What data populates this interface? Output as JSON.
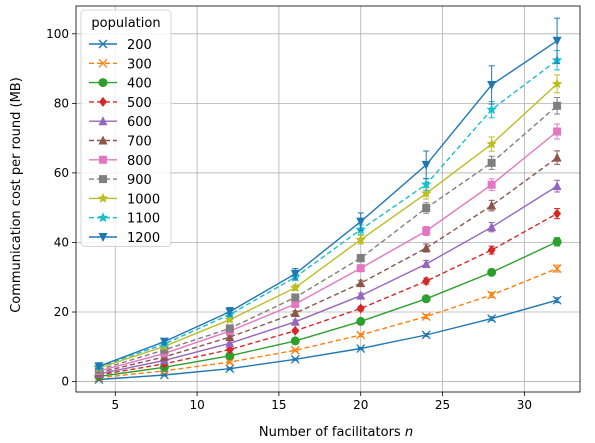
{
  "chart_data": {
    "type": "line",
    "title": "",
    "xlabel": "Number of facilitators n",
    "ylabel": "Communication cost per round (MB)",
    "xlim": [
      2.6,
      33.4
    ],
    "ylim": [
      -3,
      108
    ],
    "xticks": [
      5,
      10,
      15,
      20,
      25,
      30
    ],
    "yticks": [
      0,
      20,
      40,
      60,
      80,
      100
    ],
    "grid": true,
    "legend": {
      "title": "population",
      "placement": "top-left"
    },
    "x": [
      4,
      8,
      12,
      16,
      20,
      24,
      28,
      32
    ],
    "series": [
      {
        "name": "200",
        "color": "#1f77b4",
        "dash": "solid",
        "marker": "x",
        "values": [
          0.6,
          1.9,
          3.7,
          6.4,
          9.5,
          13.4,
          18.1,
          23.4
        ]
      },
      {
        "name": "300",
        "color": "#ff7f0e",
        "dash": "dashed",
        "marker": "x",
        "values": [
          1.1,
          3.1,
          5.6,
          9.0,
          13.4,
          18.7,
          24.9,
          32.5
        ]
      },
      {
        "name": "400",
        "color": "#2ca02c",
        "dash": "solid",
        "marker": "circle",
        "values": [
          1.5,
          4.1,
          7.4,
          11.7,
          17.3,
          23.8,
          31.4,
          40.2
        ]
      },
      {
        "name": "500",
        "color": "#d62728",
        "dash": "dashed",
        "marker": "diamond",
        "values": [
          1.9,
          5.1,
          9.2,
          14.6,
          21.0,
          28.9,
          37.8,
          48.3
        ]
      },
      {
        "name": "600",
        "color": "#9467bd",
        "dash": "solid",
        "marker": "triangle-up",
        "values": [
          2.2,
          6.1,
          11.0,
          17.2,
          24.7,
          33.8,
          44.4,
          56.2
        ]
      },
      {
        "name": "700",
        "color": "#8c564b",
        "dash": "dashed",
        "marker": "triangle-up",
        "values": [
          2.6,
          7.1,
          12.8,
          19.7,
          28.3,
          38.4,
          50.6,
          64.4
        ]
      },
      {
        "name": "800",
        "color": "#e377c2",
        "dash": "solid",
        "marker": "square",
        "values": [
          3.0,
          8.1,
          14.5,
          22.3,
          32.6,
          43.3,
          56.6,
          71.9
        ]
      },
      {
        "name": "900",
        "color": "#7f7f7f",
        "dash": "dashed",
        "marker": "square",
        "values": [
          3.4,
          9.1,
          15.3,
          24.2,
          35.5,
          49.9,
          62.9,
          79.3
        ]
      },
      {
        "name": "1000",
        "color": "#bcbd22",
        "dash": "solid",
        "marker": "star",
        "values": [
          3.9,
          10.1,
          17.8,
          27.0,
          40.8,
          54.1,
          68.3,
          85.6
        ]
      },
      {
        "name": "1100",
        "color": "#17becf",
        "dash": "dashed",
        "marker": "star",
        "values": [
          4.2,
          10.8,
          19.3,
          30.0,
          43.7,
          56.7,
          78.2,
          92.4
        ]
      },
      {
        "name": "1200",
        "color": "#1f77b4",
        "dash": "solid",
        "marker": "triangle-down",
        "values": [
          4.4,
          11.5,
          20.1,
          31.0,
          46.0,
          62.3,
          85.3,
          98.0
        ]
      }
    ],
    "error_bars_1200": [
      0.6,
      0.8,
      1.2,
      1.5,
      2.5,
      4.0,
      5.5,
      6.5
    ]
  }
}
